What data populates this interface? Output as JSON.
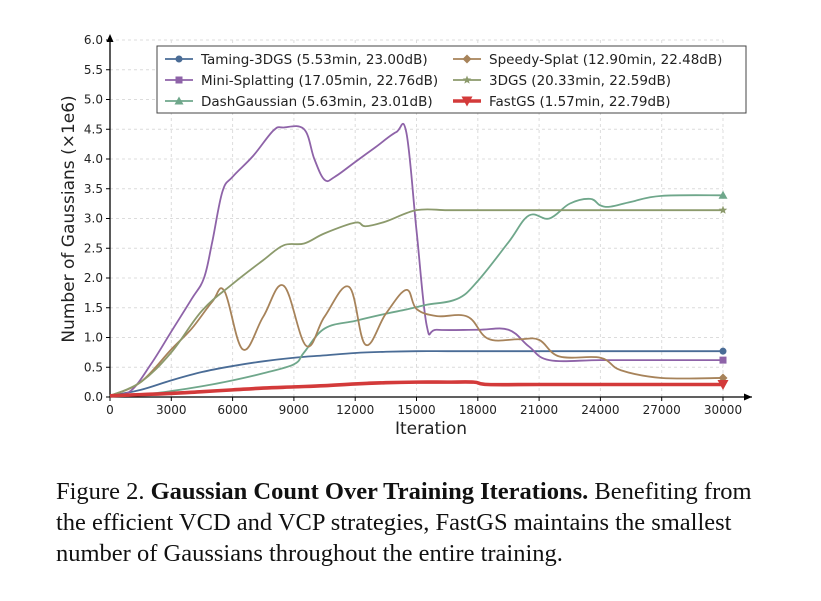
{
  "chart_data": {
    "type": "line",
    "title": "",
    "xlabel": "Iteration",
    "ylabel": "Number of Gaussians (×1e6)",
    "xlim": [
      0,
      30000
    ],
    "ylim": [
      0,
      6.0
    ],
    "x_ticks": [
      0,
      3000,
      6000,
      9000,
      12000,
      15000,
      18000,
      21000,
      24000,
      27000,
      30000
    ],
    "x_tick_labels": [
      "0",
      "3000",
      "6000",
      "9000",
      "12000",
      "15000",
      "18000",
      "21000",
      "24000",
      "27000",
      "30000"
    ],
    "y_ticks": [
      0,
      0.5,
      1.0,
      1.5,
      2.0,
      2.5,
      3.0,
      3.5,
      4.0,
      4.5,
      5.0,
      5.5,
      6.0
    ],
    "y_tick_labels": [
      "0.0",
      "0.5",
      "1.0",
      "1.5",
      "2.0",
      "2.5",
      "3.0",
      "3.5",
      "4.0",
      "4.5",
      "5.0",
      "5.5",
      "6.0"
    ],
    "grid": true,
    "legend_position": "top",
    "series": [
      {
        "name": "Taming-3DGS (5.53min, 23.00dB)",
        "color": "#4a6c96",
        "marker": "circle",
        "x": [
          0,
          1500,
          3000,
          4500,
          6000,
          7500,
          9000,
          10500,
          12000,
          13500,
          15000,
          16500,
          18000,
          21000,
          24000,
          27000,
          30000
        ],
        "y": [
          0.02,
          0.12,
          0.28,
          0.42,
          0.52,
          0.6,
          0.66,
          0.7,
          0.74,
          0.76,
          0.77,
          0.77,
          0.77,
          0.77,
          0.77,
          0.77,
          0.77
        ]
      },
      {
        "name": "Mini-Splatting (17.05min, 22.76dB)",
        "color": "#8e63a8",
        "marker": "square",
        "x": [
          0,
          1000,
          2000,
          3000,
          4000,
          4600,
          5000,
          5500,
          6000,
          7000,
          8000,
          8500,
          9500,
          10000,
          10500,
          11000,
          12000,
          13000,
          14000,
          14500,
          15000,
          15500,
          16000,
          18000,
          19500,
          20500,
          21500,
          24000,
          27000,
          30000
        ],
        "y": [
          0.02,
          0.1,
          0.55,
          1.1,
          1.65,
          2.0,
          2.6,
          3.45,
          3.7,
          4.05,
          4.48,
          4.53,
          4.5,
          4.0,
          3.65,
          3.7,
          3.95,
          4.2,
          4.45,
          4.45,
          2.8,
          1.2,
          1.13,
          1.13,
          1.13,
          0.85,
          0.62,
          0.62,
          0.62,
          0.62
        ]
      },
      {
        "name": "DashGaussian (5.63min, 23.01dB)",
        "color": "#6fa78b",
        "marker": "triangle",
        "x": [
          0,
          1500,
          3000,
          4500,
          6000,
          7500,
          9000,
          9500,
          10500,
          12000,
          13500,
          14500,
          15500,
          17000,
          18000,
          19500,
          20500,
          21500,
          22500,
          23500,
          24000,
          24500,
          25500,
          27000,
          30000
        ],
        "y": [
          0.02,
          0.04,
          0.1,
          0.18,
          0.28,
          0.4,
          0.55,
          0.75,
          1.15,
          1.28,
          1.4,
          1.47,
          1.55,
          1.65,
          1.95,
          2.6,
          3.05,
          3.0,
          3.25,
          3.33,
          3.22,
          3.2,
          3.28,
          3.38,
          3.39
        ]
      },
      {
        "name": "Speedy-Splat (12.90min, 22.48dB)",
        "color": "#a7835a",
        "marker": "diamond",
        "x": [
          0,
          1500,
          3000,
          4000,
          5000,
          5600,
          6500,
          7500,
          8500,
          9600,
          10500,
          11700,
          12500,
          13500,
          14500,
          15000,
          16000,
          17500,
          18500,
          20000,
          21000,
          22000,
          24000,
          25000,
          27000,
          30000
        ],
        "y": [
          0.02,
          0.25,
          0.8,
          1.15,
          1.6,
          1.78,
          0.8,
          1.35,
          1.87,
          0.86,
          1.35,
          1.85,
          0.88,
          1.4,
          1.8,
          1.48,
          1.36,
          1.35,
          0.98,
          0.97,
          0.96,
          0.68,
          0.66,
          0.45,
          0.32,
          0.32
        ]
      },
      {
        "name": "3DGS (20.33min, 22.59dB)",
        "color": "#8c9a6c",
        "marker": "star",
        "x": [
          0,
          1500,
          3000,
          4500,
          6000,
          7500,
          8500,
          9500,
          10500,
          12000,
          12500,
          13500,
          15000,
          16500,
          18000,
          21000,
          24000,
          27000,
          30000
        ],
        "y": [
          0.02,
          0.25,
          0.75,
          1.45,
          1.9,
          2.3,
          2.55,
          2.58,
          2.75,
          2.93,
          2.87,
          2.95,
          3.14,
          3.14,
          3.14,
          3.14,
          3.14,
          3.14,
          3.14
        ]
      },
      {
        "name": "FastGS (1.57min, 22.79dB)",
        "color": "#d33a3a",
        "marker": "triangle-down",
        "x": [
          0,
          1500,
          3000,
          4500,
          6000,
          7500,
          9000,
          10500,
          12000,
          13500,
          15000,
          16500,
          17800,
          18500,
          21000,
          24000,
          27000,
          30000
        ],
        "y": [
          0.02,
          0.04,
          0.06,
          0.09,
          0.12,
          0.15,
          0.17,
          0.19,
          0.22,
          0.24,
          0.25,
          0.25,
          0.25,
          0.21,
          0.21,
          0.21,
          0.21,
          0.21
        ]
      }
    ]
  },
  "caption": {
    "prefix": "Figure 2. ",
    "bold": "Gaussian Count Over Training Iterations.",
    "text": " Benefiting from the efficient VCD and VCP strategies, FastGS maintains the smallest number of Gaussians throughout the entire training."
  }
}
